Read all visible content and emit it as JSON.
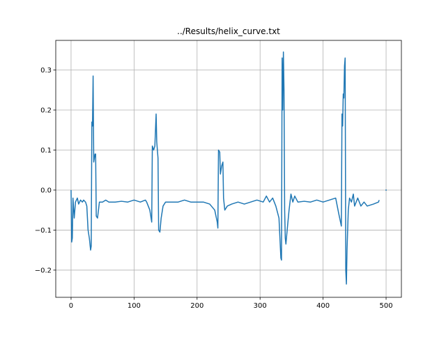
{
  "chart_data": {
    "type": "line",
    "title": "../Results/helix_curve.txt",
    "x": [
      0,
      1,
      2,
      3,
      5,
      7,
      10,
      12,
      15,
      18,
      20,
      23,
      25,
      27,
      29,
      31,
      32,
      33,
      34,
      35,
      36,
      38,
      39,
      40,
      42,
      45,
      50,
      55,
      60,
      70,
      80,
      90,
      100,
      110,
      118,
      120,
      125,
      128,
      129,
      131,
      133,
      135,
      136,
      138,
      139,
      141,
      143,
      146,
      150,
      160,
      170,
      180,
      190,
      200,
      210,
      220,
      228,
      232,
      233,
      234,
      236,
      237,
      239,
      241,
      242,
      244,
      248,
      255,
      265,
      275,
      285,
      295,
      305,
      310,
      315,
      320,
      325,
      330,
      333,
      334,
      335,
      336,
      337,
      338,
      339,
      340,
      341,
      343,
      346,
      349,
      352,
      355,
      360,
      370,
      380,
      390,
      400,
      410,
      420,
      425,
      429,
      430,
      431,
      432,
      433,
      434,
      435,
      436,
      437,
      438,
      440,
      442,
      445,
      448,
      450,
      455,
      460,
      465,
      470,
      480,
      488,
      489,
      495,
      499,
      501
    ],
    "series": [
      {
        "color": "#1f77b4",
        "values": [
          0.0,
          -0.13,
          -0.12,
          -0.02,
          -0.07,
          -0.03,
          -0.02,
          -0.035,
          -0.025,
          -0.03,
          -0.025,
          -0.03,
          -0.04,
          -0.1,
          -0.12,
          -0.15,
          -0.14,
          0.17,
          0.16,
          0.285,
          0.07,
          0.09,
          0.09,
          -0.065,
          -0.07,
          -0.03,
          -0.03,
          -0.025,
          -0.03,
          -0.03,
          -0.028,
          -0.03,
          -0.025,
          -0.03,
          -0.025,
          -0.03,
          -0.05,
          -0.08,
          0.11,
          0.1,
          0.11,
          0.19,
          0.12,
          0.08,
          -0.1,
          -0.105,
          -0.07,
          -0.04,
          -0.03,
          -0.03,
          -0.03,
          -0.025,
          -0.03,
          -0.03,
          -0.03,
          -0.035,
          -0.05,
          -0.08,
          -0.095,
          0.1,
          0.095,
          0.04,
          0.06,
          0.07,
          -0.02,
          -0.05,
          -0.04,
          -0.035,
          -0.03,
          -0.035,
          -0.03,
          -0.025,
          -0.03,
          -0.015,
          -0.03,
          -0.02,
          -0.04,
          -0.07,
          -0.17,
          -0.175,
          0.33,
          0.2,
          0.345,
          0.25,
          -0.05,
          -0.12,
          -0.135,
          -0.1,
          -0.05,
          -0.01,
          -0.03,
          -0.015,
          -0.03,
          -0.028,
          -0.03,
          -0.025,
          -0.03,
          -0.025,
          -0.02,
          -0.06,
          -0.09,
          0.19,
          0.16,
          0.24,
          0.23,
          0.31,
          0.33,
          -0.2,
          -0.235,
          -0.15,
          -0.05,
          -0.02,
          -0.03,
          -0.01,
          -0.04,
          -0.02,
          -0.04,
          -0.03,
          -0.04,
          -0.035,
          -0.03,
          -0.025,
          null,
          0.0,
          0.0
        ]
      }
    ],
    "xlim": [
      -24.3,
      524.3
    ],
    "ylim": [
      -0.268,
      0.374
    ],
    "xticks": [
      0,
      100,
      200,
      300,
      400,
      500
    ],
    "yticks": [
      {
        "value": -0.2,
        "label": "−0.2"
      },
      {
        "value": -0.1,
        "label": "−0.1"
      },
      {
        "value": 0.0,
        "label": "0.0"
      },
      0.1,
      0.2,
      0.3
    ],
    "grid": true
  }
}
